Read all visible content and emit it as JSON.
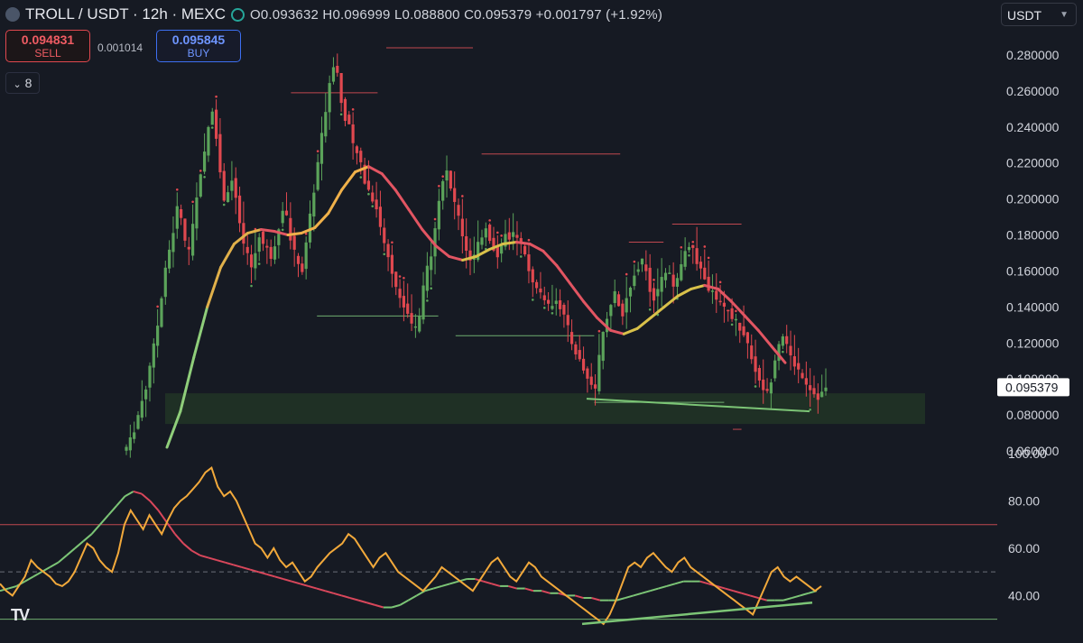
{
  "header": {
    "symbol": "TROLL / USDT · 12h · MEXC",
    "open": "O0.093632",
    "high": "H0.096999",
    "low": "L0.088800",
    "close": "C0.095379",
    "change": "+0.001797 (+1.92%)"
  },
  "trade": {
    "sell_price": "0.094831",
    "sell_label": "SELL",
    "spread": "0.001014",
    "buy_price": "0.095845",
    "buy_label": "BUY"
  },
  "indicators_toggle": "8",
  "currency_select": "USDT",
  "logo_text": "TV",
  "colors": {
    "up": "#5ba35a",
    "down": "#e0484f",
    "ma": "#f0b14a",
    "rsi": "#f2a93b",
    "rsi_ma_up": "#7cc576",
    "rsi_ma_down": "#d9475b",
    "zone": "#213526"
  },
  "chart_data": [
    {
      "type": "candlestick",
      "price_axis_ticks": [
        "0.280000",
        "0.260000",
        "0.240000",
        "0.220000",
        "0.200000",
        "0.180000",
        "0.160000",
        "0.140000",
        "0.120000",
        "0.100000",
        "0.080000",
        "0.060000"
      ],
      "ylim": [
        0.06,
        0.288
      ],
      "last_price_label": "0.095379",
      "last_price": 0.095379,
      "support_zone": [
        0.075,
        0.092
      ],
      "price_path": [
        0.062,
        0.066,
        0.072,
        0.08,
        0.088,
        0.095,
        0.108,
        0.118,
        0.13,
        0.145,
        0.16,
        0.172,
        0.182,
        0.195,
        0.19,
        0.175,
        0.17,
        0.185,
        0.2,
        0.215,
        0.225,
        0.24,
        0.25,
        0.235,
        0.215,
        0.2,
        0.205,
        0.21,
        0.2,
        0.185,
        0.175,
        0.168,
        0.162,
        0.17,
        0.18,
        0.175,
        0.172,
        0.168,
        0.175,
        0.185,
        0.195,
        0.19,
        0.178,
        0.17,
        0.165,
        0.16,
        0.175,
        0.19,
        0.205,
        0.22,
        0.235,
        0.25,
        0.265,
        0.275,
        0.27,
        0.255,
        0.245,
        0.24,
        0.23,
        0.225,
        0.22,
        0.21,
        0.205,
        0.2,
        0.195,
        0.185,
        0.175,
        0.168,
        0.16,
        0.152,
        0.145,
        0.14,
        0.135,
        0.13,
        0.128,
        0.135,
        0.15,
        0.162,
        0.17,
        0.185,
        0.2,
        0.21,
        0.215,
        0.205,
        0.198,
        0.19,
        0.18,
        0.172,
        0.165,
        0.168,
        0.175,
        0.18,
        0.185,
        0.178,
        0.172,
        0.168,
        0.175,
        0.18,
        0.178,
        0.182,
        0.18,
        0.175,
        0.168,
        0.16,
        0.155,
        0.15,
        0.148,
        0.145,
        0.14,
        0.142,
        0.145,
        0.14,
        0.135,
        0.128,
        0.12,
        0.115,
        0.11,
        0.105,
        0.1,
        0.097,
        0.095,
        0.112,
        0.125,
        0.135,
        0.142,
        0.148,
        0.14,
        0.135,
        0.145,
        0.15,
        0.158,
        0.162,
        0.165,
        0.16,
        0.15,
        0.145,
        0.15,
        0.155,
        0.16,
        0.158,
        0.15,
        0.155,
        0.162,
        0.17,
        0.175,
        0.172,
        0.165,
        0.16,
        0.155,
        0.15,
        0.148,
        0.145,
        0.142,
        0.14,
        0.138,
        0.135,
        0.132,
        0.128,
        0.124,
        0.12,
        0.112,
        0.105,
        0.098,
        0.095,
        0.092,
        0.1,
        0.112,
        0.12,
        0.125,
        0.118,
        0.112,
        0.108,
        0.105,
        0.102,
        0.098,
        0.095,
        0.092,
        0.09,
        0.092,
        0.095
      ],
      "ma_path": [
        0.062,
        0.082,
        0.112,
        0.14,
        0.162,
        0.175,
        0.181,
        0.183,
        0.182,
        0.18,
        0.181,
        0.184,
        0.192,
        0.205,
        0.215,
        0.218,
        0.214,
        0.205,
        0.194,
        0.183,
        0.174,
        0.168,
        0.166,
        0.168,
        0.172,
        0.175,
        0.176,
        0.175,
        0.171,
        0.163,
        0.153,
        0.143,
        0.134,
        0.127,
        0.125,
        0.128,
        0.134,
        0.14,
        0.146,
        0.15,
        0.152,
        0.15,
        0.143,
        0.135,
        0.127,
        0.118,
        0.109
      ],
      "levels": [
        {
          "y": 0.259,
          "x0": 0.19,
          "x1": 0.29,
          "color": "#c0484f"
        },
        {
          "y": 0.284,
          "x0": 0.3,
          "x1": 0.4,
          "color": "#c0484f"
        },
        {
          "y": 0.225,
          "x0": 0.41,
          "x1": 0.57,
          "color": "#c0484f"
        },
        {
          "y": 0.186,
          "x0": 0.63,
          "x1": 0.71,
          "color": "#c0484f"
        },
        {
          "y": 0.176,
          "x0": 0.58,
          "x1": 0.62,
          "color": "#c0484f"
        },
        {
          "y": 0.135,
          "x0": 0.22,
          "x1": 0.36,
          "color": "#6fae6f"
        },
        {
          "y": 0.124,
          "x0": 0.38,
          "x1": 0.54,
          "color": "#6fae6f"
        },
        {
          "y": 0.087,
          "x0": 0.54,
          "x1": 0.69,
          "color": "#6fae6f"
        },
        {
          "y": 0.072,
          "x0": 0.7,
          "x1": 0.71,
          "color": "#c0484f"
        }
      ],
      "trendline": {
        "y0": 0.089,
        "y1": 0.082,
        "x0": 0.54,
        "x1": 0.75
      }
    },
    {
      "type": "line",
      "name": "RSI",
      "axis_ticks": [
        "100.00",
        "80.00",
        "60.00",
        "40.00"
      ],
      "ylim": [
        23,
        100
      ],
      "upper_band": 70,
      "mid_band": 50,
      "lower_band": 30,
      "rsi": [
        45,
        42,
        40,
        44,
        48,
        55,
        52,
        50,
        48,
        45,
        44,
        46,
        50,
        56,
        62,
        60,
        55,
        52,
        50,
        58,
        70,
        76,
        72,
        68,
        74,
        70,
        66,
        72,
        77,
        80,
        82,
        85,
        88,
        92,
        94,
        86,
        82,
        84,
        80,
        74,
        68,
        62,
        60,
        56,
        60,
        55,
        52,
        54,
        50,
        46,
        48,
        52,
        55,
        58,
        60,
        62,
        66,
        64,
        60,
        56,
        52,
        56,
        58,
        54,
        50,
        48,
        46,
        44,
        42,
        45,
        48,
        52,
        50,
        48,
        46,
        44,
        42,
        46,
        50,
        54,
        56,
        52,
        48,
        46,
        50,
        54,
        52,
        48,
        46,
        44,
        42,
        40,
        38,
        36,
        34,
        32,
        30,
        28,
        32,
        38,
        45,
        52,
        54,
        52,
        56,
        58,
        55,
        52,
        50,
        54,
        56,
        52,
        50,
        48,
        46,
        44,
        42,
        40,
        38,
        36,
        34,
        32,
        38,
        44,
        50,
        52,
        48,
        46,
        48,
        46,
        44,
        42,
        44
      ],
      "rsi_ma": [
        42,
        43,
        44,
        46,
        48,
        50,
        52,
        54,
        57,
        60,
        63,
        66,
        70,
        74,
        78,
        82,
        84,
        83,
        80,
        76,
        71,
        66,
        62,
        59,
        57,
        56,
        55,
        54,
        53,
        52,
        51,
        50,
        49,
        48,
        47,
        46,
        45,
        44,
        43,
        42,
        41,
        40,
        39,
        38,
        37,
        36,
        35,
        35,
        36,
        38,
        40,
        42,
        43,
        44,
        45,
        46,
        47,
        47,
        46,
        45,
        44,
        44,
        43,
        43,
        42,
        42,
        41,
        41,
        40,
        40,
        39,
        39,
        38,
        38,
        38,
        39,
        40,
        41,
        42,
        43,
        44,
        45,
        46,
        46,
        46,
        45,
        44,
        43,
        42,
        41,
        40,
        39,
        38,
        38,
        38,
        39,
        40,
        41,
        42
      ],
      "divergence_line": {
        "y0": 28,
        "y1": 37,
        "x0": 0.54,
        "x1": 0.75
      }
    }
  ]
}
